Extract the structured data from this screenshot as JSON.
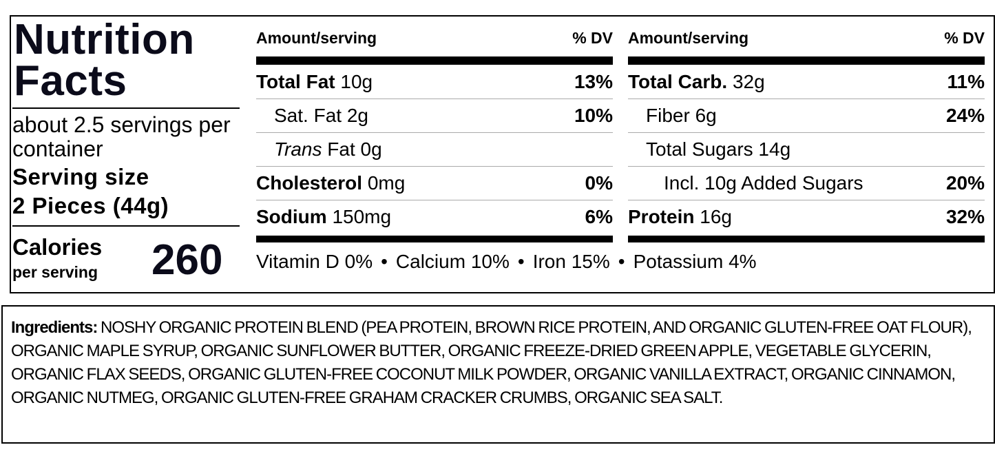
{
  "label": {
    "title": "Nutrition Facts",
    "servings": "about 2.5 servings per container",
    "serving_size_label": "Serving size",
    "serving_size": "2 Pieces (44g)",
    "calories_label": "Calories",
    "calories_sub": "per serving",
    "calories": 260,
    "columns": [
      {
        "header_amount": "Amount/serving",
        "header_dv": "% DV",
        "rows": [
          {
            "name": "Total Fat",
            "amount": "10g",
            "dv": "13%",
            "bold": true,
            "indent": 0
          },
          {
            "name": "Sat. Fat",
            "amount": "2g",
            "dv": "10%",
            "bold": false,
            "indent": 1
          },
          {
            "italic_name": "Trans",
            "name": "Fat",
            "amount": "0g",
            "bold": false,
            "indent": 1
          },
          {
            "name": "Cholesterol",
            "amount": "0mg",
            "dv": "0%",
            "bold": true,
            "indent": 0
          },
          {
            "name": "Sodium",
            "amount": "150mg",
            "dv": "6%",
            "bold": true,
            "indent": 0
          }
        ]
      },
      {
        "header_amount": "Amount/serving",
        "header_dv": "% DV",
        "rows": [
          {
            "name": "Total Carb.",
            "amount": "32g",
            "dv": "11%",
            "bold": true,
            "indent": 0
          },
          {
            "name": "Fiber",
            "amount": "6g",
            "dv": "24%",
            "bold": false,
            "indent": 1
          },
          {
            "name": "Total Sugars",
            "amount": "14g",
            "bold": false,
            "indent": 1
          },
          {
            "name": "Incl. 10g Added Sugars",
            "dv": "20%",
            "bold": false,
            "indent": 2
          },
          {
            "name": "Protein",
            "amount": "16g",
            "dv": "32%",
            "bold": true,
            "indent": 0
          }
        ]
      }
    ],
    "vitamins": [
      "Vitamin D 0%",
      "Calcium 10%",
      "Iron 15%",
      "Potassium 4%"
    ],
    "ingredients_label": "Ingredients:",
    "ingredients": "NOSHY ORGANIC PROTEIN BLEND (PEA PROTEIN, BROWN RICE PROTEIN, AND ORGANIC GLUTEN-FREE OAT FLOUR), ORGANIC MAPLE SYRUP, ORGANIC SUNFLOWER BUTTER, ORGANIC FREEZE-DRIED GREEN APPLE, VEGETABLE GLYCERIN, ORGANIC FLAX SEEDS, ORGANIC GLUTEN-FREE COCONUT MILK POWDER, ORGANIC VANILLA EXTRACT, ORGANIC CINNAMON, ORGANIC NUTMEG, ORGANIC GLUTEN-FREE GRAHAM CRACKER CRUMBS, ORGANIC SEA SALT."
  }
}
